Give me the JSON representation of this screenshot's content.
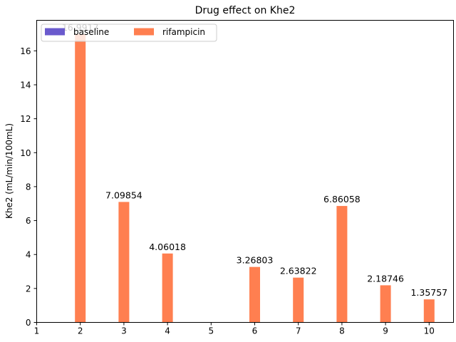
{
  "chart_data": {
    "type": "bar",
    "title": "Drug effect on Khe2",
    "xlabel": "",
    "ylabel": "Khe2 (mL/min/100mL)",
    "categories": [
      "1",
      "2",
      "3",
      "4",
      "5",
      "6",
      "7",
      "8",
      "9",
      "10"
    ],
    "ylim": [
      0,
      17.8
    ],
    "yticks": [
      0,
      2,
      4,
      6,
      8,
      10,
      12,
      14,
      16
    ],
    "grid": false,
    "legend": {
      "placement": "top-left",
      "ncol": 2
    },
    "series": [
      {
        "name": "baseline",
        "color": "#6a5acd",
        "values": [
          null,
          null,
          null,
          null,
          null,
          null,
          null,
          null,
          null,
          null
        ],
        "labels": [
          "",
          "",
          "",
          "",
          "",
          "",
          "",
          "",
          "",
          ""
        ]
      },
      {
        "name": "rifampicin",
        "color": "#ff7f50",
        "values": [
          null,
          16.9917,
          7.09854,
          4.06018,
          null,
          3.26803,
          2.63822,
          6.86058,
          2.18746,
          1.35757
        ],
        "labels": [
          "",
          "16.9917",
          "7.09854",
          "4.06018",
          "",
          "3.26803",
          "2.63822",
          "6.86058",
          "2.18746",
          "1.35757"
        ]
      }
    ]
  }
}
